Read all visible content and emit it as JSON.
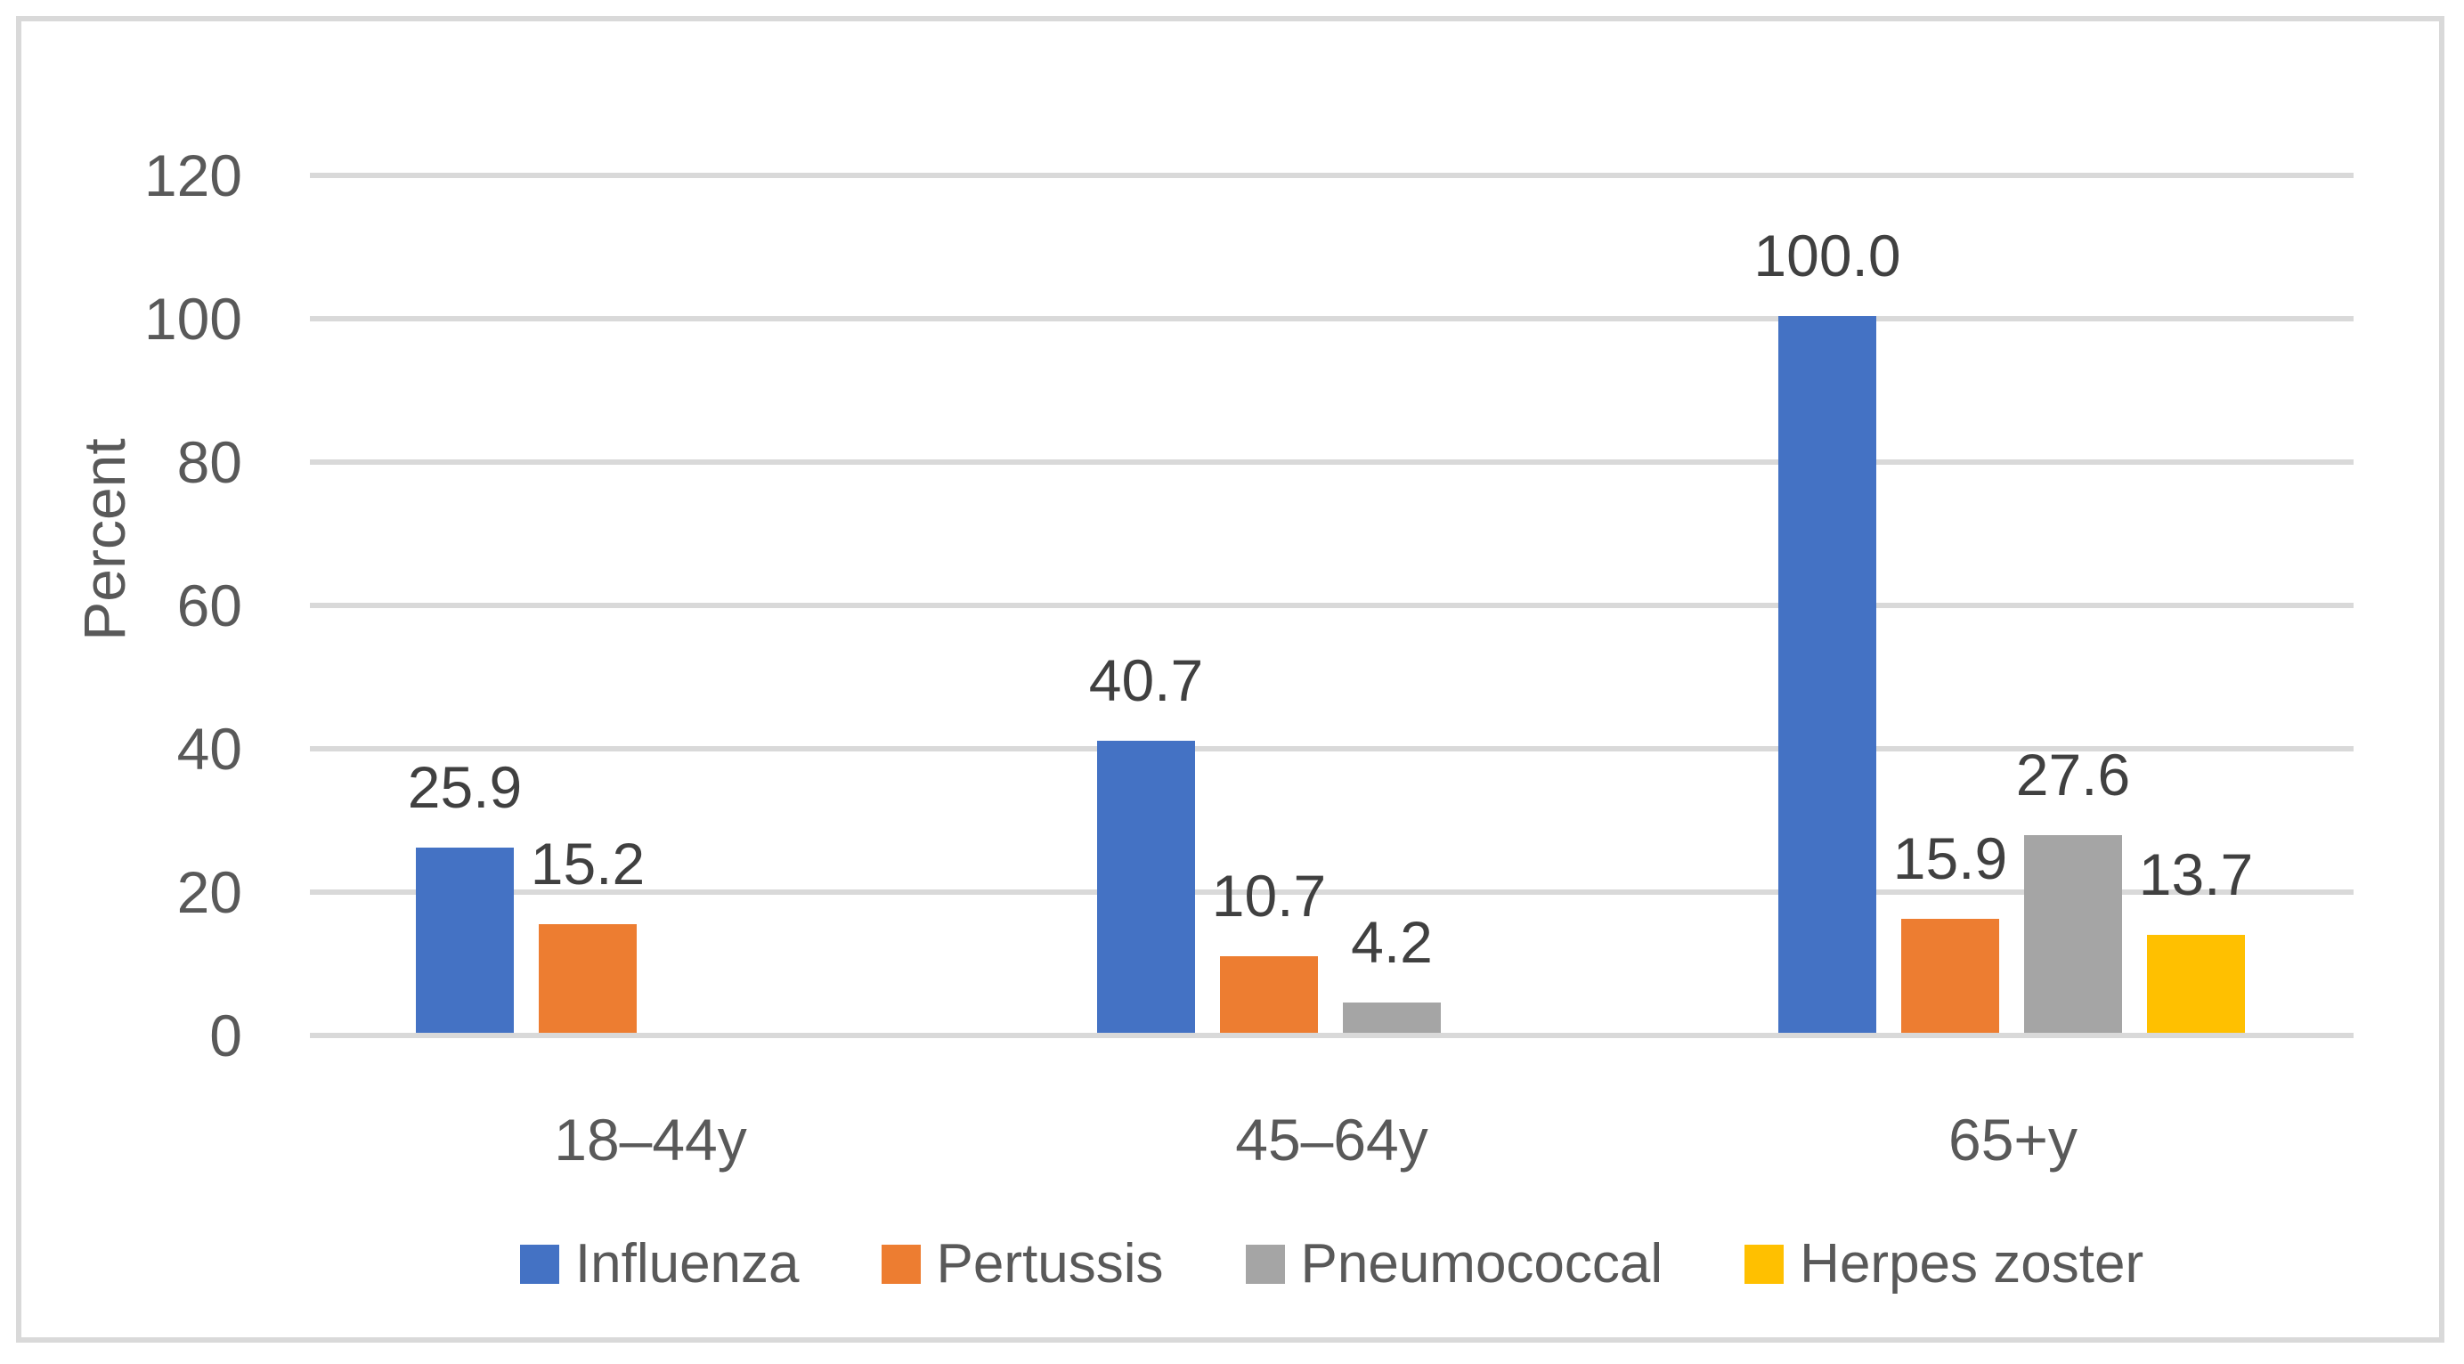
{
  "chart_data": {
    "type": "bar",
    "title": "",
    "xlabel": "",
    "ylabel": "Percent",
    "ylim": [
      0,
      120
    ],
    "ytick_interval": 20,
    "yticks": [
      0,
      20,
      40,
      60,
      80,
      100,
      120
    ],
    "grid": true,
    "legend_position": "bottom",
    "data_label_style": "outside end, one decimal place",
    "categories": [
      "18–44y",
      "45–64y",
      "65+y"
    ],
    "series": [
      {
        "name": "Influenza",
        "color": "#4472C4",
        "values": [
          25.9,
          40.7,
          100.0
        ],
        "data_labels": [
          "25.9",
          "40.7",
          "100.0"
        ]
      },
      {
        "name": "Pertussis",
        "color": "#ED7D31",
        "values": [
          15.2,
          10.7,
          15.9
        ],
        "data_labels": [
          "15.2",
          "10.7",
          "15.9"
        ]
      },
      {
        "name": "Pneumococcal",
        "color": "#A5A5A5",
        "values": [
          null,
          4.2,
          27.6
        ],
        "data_labels": [
          "",
          "4.2",
          "27.6"
        ]
      },
      {
        "name": "Herpes zoster",
        "color": "#FFC000",
        "values": [
          null,
          null,
          13.7
        ],
        "data_labels": [
          "",
          "",
          "13.7"
        ]
      }
    ]
  },
  "ui_colors": {
    "frame_border": "#D9D9D9",
    "gridline": "#D9D9D9",
    "axis_text": "#595959",
    "data_label_text": "#404040",
    "background": "#ffffff"
  }
}
